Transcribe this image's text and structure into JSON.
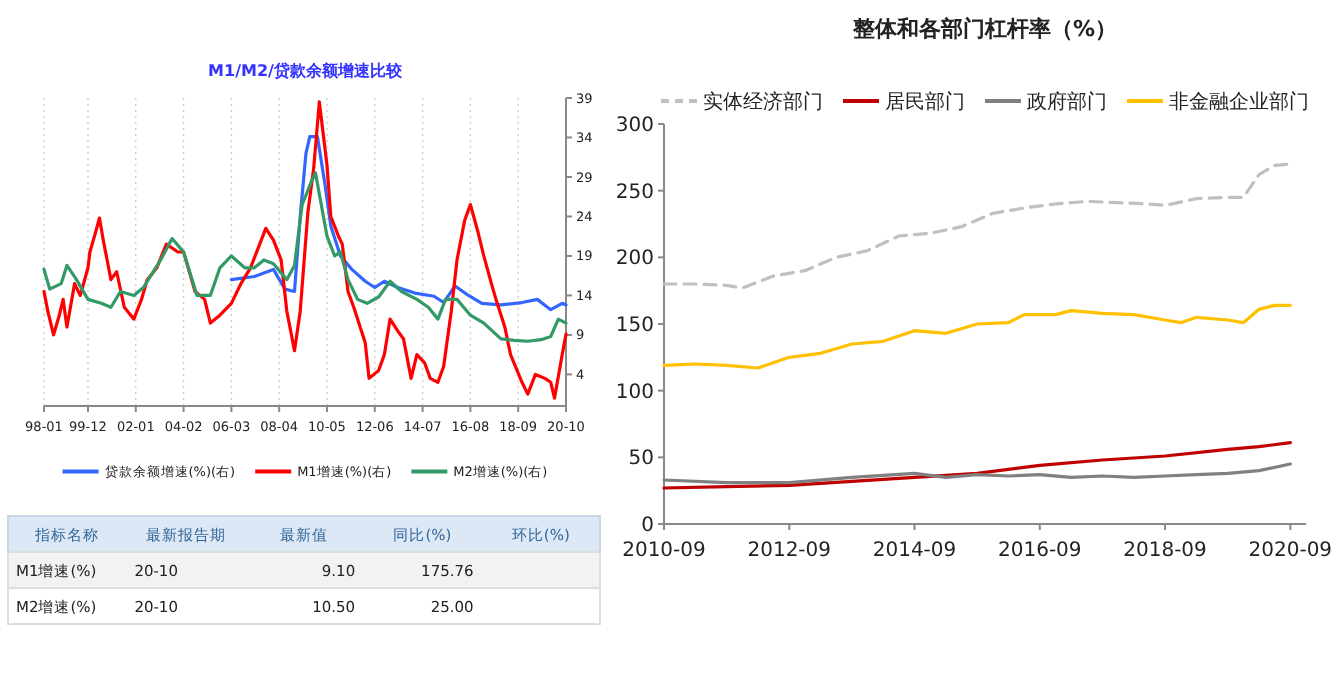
{
  "chart_data": [
    {
      "type": "line",
      "title": "M1/M2/贷款余额增速比较",
      "legend": "bottom",
      "grid": "x",
      "xlim": [
        "1998-01",
        "2020-10"
      ],
      "xticks": [
        {
          "value": "1998-01",
          "label": "98-01"
        },
        {
          "value": "1999-12",
          "label": "99-12"
        },
        {
          "value": "2002-01",
          "label": "02-01"
        },
        {
          "value": "2004-02",
          "label": "04-02"
        },
        {
          "value": "2006-03",
          "label": "06-03"
        },
        {
          "value": "2008-04",
          "label": "08-04"
        },
        {
          "value": "2010-05",
          "label": "10-05"
        },
        {
          "value": "2012-06",
          "label": "12-06"
        },
        {
          "value": "2014-07",
          "label": "14-07"
        },
        {
          "value": "2016-08",
          "label": "16-08"
        },
        {
          "value": "2018-09",
          "label": "18-09"
        },
        {
          "value": "2020-10",
          "label": "20-10"
        }
      ],
      "y2lim": [
        0,
        39
      ],
      "y2ticks": [
        4,
        9,
        14,
        19,
        24,
        29,
        34,
        39
      ],
      "series": [
        {
          "name": "贷款余额增速(%)(右)",
          "color": "#3366ff",
          "axis": "y2",
          "x": [
            "2006-03",
            "2007-03",
            "2008-01",
            "2008-07",
            "2008-12",
            "2009-03",
            "2009-06",
            "2009-08",
            "2009-12",
            "2010-04",
            "2010-07",
            "2010-12",
            "2011-06",
            "2012-01",
            "2012-06",
            "2012-11",
            "2013-06",
            "2014-03",
            "2015-01",
            "2015-06",
            "2015-12",
            "2016-07",
            "2017-02",
            "2017-12",
            "2018-11",
            "2019-07",
            "2020-02",
            "2020-08",
            "2020-10"
          ],
          "values": [
            16.0,
            16.4,
            17.3,
            14.8,
            14.5,
            24.0,
            32.0,
            34.1,
            34.1,
            28.0,
            22.8,
            19.0,
            17.3,
            15.8,
            15.0,
            15.8,
            15.0,
            14.3,
            13.9,
            13.1,
            15.2,
            14.0,
            13.0,
            12.8,
            13.1,
            13.5,
            12.2,
            13.0,
            12.8
          ]
        },
        {
          "name": "M1增速(%)(右)",
          "color": "#ff0000",
          "axis": "y2",
          "x": [
            "1998-01",
            "1998-03",
            "1998-06",
            "1998-09",
            "1998-11",
            "1999-01",
            "1999-05",
            "1999-08",
            "1999-12",
            "2000-01",
            "2000-04",
            "2000-06",
            "2000-08",
            "2000-12",
            "2001-03",
            "2001-07",
            "2001-12",
            "2002-04",
            "2002-07",
            "2002-12",
            "2003-05",
            "2003-11",
            "2004-02",
            "2004-08",
            "2005-01",
            "2005-04",
            "2005-09",
            "2006-03",
            "2006-08",
            "2007-01",
            "2007-05",
            "2007-09",
            "2008-01",
            "2008-05",
            "2008-08",
            "2008-12",
            "2009-03",
            "2009-07",
            "2009-10",
            "2010-01",
            "2010-05",
            "2010-07",
            "2010-11",
            "2011-01",
            "2011-04",
            "2011-07",
            "2012-01",
            "2012-03",
            "2012-08",
            "2012-11",
            "2013-02",
            "2013-06",
            "2013-09",
            "2014-01",
            "2014-04",
            "2014-08",
            "2014-11",
            "2015-03",
            "2015-06",
            "2015-10",
            "2016-01",
            "2016-05",
            "2016-08",
            "2016-12",
            "2017-03",
            "2017-07",
            "2017-10",
            "2018-02",
            "2018-05",
            "2018-11",
            "2019-02",
            "2019-06",
            "2019-11",
            "2020-02",
            "2020-04",
            "2020-08",
            "2020-10"
          ],
          "values": [
            14.5,
            12,
            9.0,
            11.5,
            13.5,
            10.0,
            15.5,
            14.0,
            17.5,
            19.5,
            22,
            23.8,
            21.0,
            16.0,
            17.0,
            12.5,
            11.0,
            13.5,
            16.0,
            17.5,
            20.5,
            19.5,
            19.5,
            14.5,
            13.5,
            10.5,
            11.5,
            13.0,
            15.5,
            17.5,
            20,
            22.5,
            21.0,
            18.5,
            12.0,
            7.0,
            12.0,
            24.5,
            30.0,
            38.5,
            30.5,
            24.0,
            21.5,
            20.5,
            14.5,
            12.5,
            8.0,
            3.5,
            4.5,
            6.5,
            11.0,
            9.5,
            8.5,
            3.5,
            6.5,
            5.5,
            3.5,
            3.0,
            5.0,
            12.0,
            18.5,
            23.5,
            25.5,
            22.0,
            19.0,
            15.5,
            13.0,
            10.0,
            6.5,
            3.0,
            1.5,
            4.0,
            3.5,
            3.0,
            1.0,
            6.5,
            9.1
          ]
        },
        {
          "name": "M2增速(%)(右)",
          "color": "#339966",
          "axis": "y2",
          "x": [
            "1998-01",
            "1998-04",
            "1998-10",
            "1999-01",
            "1999-06",
            "1999-12",
            "2000-07",
            "2000-12",
            "2001-05",
            "2001-12",
            "2002-05",
            "2003-02",
            "2003-08",
            "2004-02",
            "2004-09",
            "2005-04",
            "2005-09",
            "2006-03",
            "2006-10",
            "2007-03",
            "2007-08",
            "2008-01",
            "2008-08",
            "2008-12",
            "2009-04",
            "2009-09",
            "2009-11",
            "2010-02",
            "2010-05",
            "2010-09",
            "2010-12",
            "2011-04",
            "2011-09",
            "2012-02",
            "2012-08",
            "2013-02",
            "2013-08",
            "2014-04",
            "2014-10",
            "2015-03",
            "2015-07",
            "2016-01",
            "2016-08",
            "2017-03",
            "2017-12",
            "2018-07",
            "2019-02",
            "2019-09",
            "2020-02",
            "2020-06",
            "2020-10"
          ],
          "values": [
            17.3,
            14.8,
            15.5,
            17.8,
            16.0,
            13.5,
            13.0,
            12.5,
            14.5,
            14.0,
            15.0,
            18.5,
            21.2,
            19.5,
            14.0,
            14.0,
            17.5,
            19.0,
            17.5,
            17.5,
            18.5,
            18.0,
            16.0,
            17.8,
            25.5,
            28.5,
            29.5,
            25.5,
            21.5,
            19.0,
            19.5,
            16.0,
            13.5,
            13.0,
            13.8,
            15.8,
            14.5,
            13.5,
            12.5,
            11.0,
            13.5,
            13.5,
            11.5,
            10.5,
            8.5,
            8.3,
            8.2,
            8.4,
            8.8,
            11.0,
            10.5
          ]
        }
      ]
    },
    {
      "type": "other",
      "categories": [
        "指标名称",
        "最新报告期",
        "最新值",
        "同比(%)",
        "环比(%)"
      ],
      "annotations": [
        "M1增速(%)",
        "20-10",
        "9.10",
        "175.76",
        "M2增速(%)",
        "20-10",
        "10.50",
        "25.00"
      ]
    },
    {
      "type": "line",
      "title": "整体和各部门杠杆率（%）",
      "legend": "top",
      "xlim": [
        "2010-09",
        "2020-12"
      ],
      "xticks": [
        {
          "value": "2010-09",
          "label": "2010-09"
        },
        {
          "value": "2012-09",
          "label": "2012-09"
        },
        {
          "value": "2014-09",
          "label": "2014-09"
        },
        {
          "value": "2016-09",
          "label": "2016-09"
        },
        {
          "value": "2018-09",
          "label": "2018-09"
        },
        {
          "value": "2020-09",
          "label": "2020-09"
        }
      ],
      "ylim": [
        0,
        300
      ],
      "yticks": [
        0,
        50,
        100,
        150,
        200,
        250,
        300
      ],
      "series": [
        {
          "name": "实体经济部门",
          "color": "#c0c0c0",
          "line_style": "dashed",
          "x": [
            "2010-09",
            "2011-03",
            "2011-09",
            "2011-12",
            "2012-06",
            "2012-12",
            "2013-06",
            "2013-12",
            "2014-06",
            "2014-12",
            "2015-06",
            "2015-12",
            "2016-06",
            "2016-12",
            "2017-06",
            "2017-12",
            "2018-06",
            "2018-09",
            "2019-03",
            "2019-09",
            "2019-12",
            "2020-03",
            "2020-06",
            "2020-09"
          ],
          "values": [
            180,
            180,
            179,
            177,
            186,
            190,
            200,
            205,
            216,
            218,
            223,
            233,
            237,
            240,
            242,
            241,
            240,
            239,
            244,
            245,
            245,
            262,
            269,
            270
          ]
        },
        {
          "name": "居民部门",
          "color": "#c00000",
          "x": [
            "2010-09",
            "2011-09",
            "2012-09",
            "2013-09",
            "2014-09",
            "2015-09",
            "2016-09",
            "2017-09",
            "2018-09",
            "2019-09",
            "2020-03",
            "2020-09"
          ],
          "values": [
            27,
            28,
            29,
            32,
            35,
            38,
            44,
            48,
            51,
            56,
            58,
            61
          ]
        },
        {
          "name": "政府部门",
          "color": "#808080",
          "x": [
            "2010-09",
            "2011-09",
            "2012-09",
            "2013-09",
            "2014-09",
            "2015-03",
            "2015-09",
            "2016-03",
            "2016-09",
            "2017-03",
            "2017-09",
            "2018-03",
            "2018-09",
            "2019-03",
            "2019-09",
            "2020-03",
            "2020-09"
          ],
          "values": [
            33,
            31,
            31,
            35,
            38,
            35,
            37,
            36,
            37,
            35,
            36,
            35,
            36,
            37,
            38,
            40,
            45
          ]
        },
        {
          "name": "非金融企业部门",
          "color": "#ffc000",
          "x": [
            "2010-09",
            "2011-03",
            "2011-09",
            "2012-03",
            "2012-09",
            "2013-03",
            "2013-09",
            "2014-03",
            "2014-09",
            "2015-03",
            "2015-09",
            "2016-03",
            "2016-06",
            "2016-12",
            "2017-03",
            "2017-09",
            "2018-03",
            "2018-09",
            "2018-12",
            "2019-03",
            "2019-09",
            "2019-12",
            "2020-03",
            "2020-06",
            "2020-09"
          ],
          "values": [
            119,
            120,
            119,
            117,
            125,
            128,
            135,
            137,
            145,
            143,
            150,
            151,
            157,
            157,
            160,
            158,
            157,
            153,
            151,
            155,
            153,
            151,
            161,
            164,
            164
          ]
        }
      ]
    }
  ]
}
